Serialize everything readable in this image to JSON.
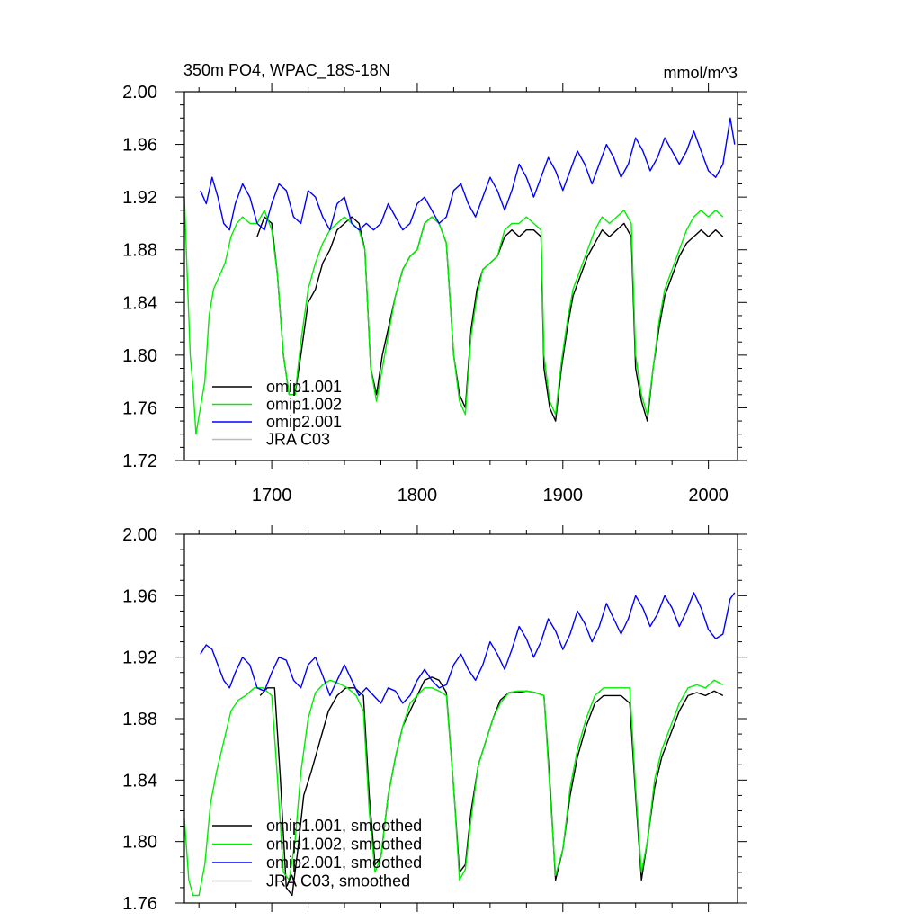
{
  "chart_data": [
    {
      "type": "line",
      "title": "350m PO4, WPAC_18S-18N",
      "units": "mmol/m^3",
      "xlim": [
        1640,
        2020
      ],
      "ylim": [
        1.72,
        2.0
      ],
      "x_ticks": [
        1700,
        1800,
        1900,
        2000
      ],
      "y_ticks": [
        "1.72",
        "1.76",
        "1.80",
        "1.84",
        "1.88",
        "1.92",
        "1.96",
        "2.00"
      ],
      "series": [
        {
          "name": "omip1.001",
          "color": "#000000",
          "x": [
            1690,
            1695,
            1700,
            1704,
            1708,
            1712,
            1716,
            1720,
            1725,
            1730,
            1735,
            1740,
            1745,
            1750,
            1755,
            1760,
            1764,
            1768,
            1772,
            1776,
            1780,
            1785,
            1790,
            1795,
            1800,
            1805,
            1810,
            1815,
            1820,
            1825,
            1829,
            1833,
            1837,
            1841,
            1845,
            1850,
            1855,
            1860,
            1865,
            1870,
            1875,
            1880,
            1885,
            1887,
            1891,
            1895,
            1899,
            1903,
            1907,
            1912,
            1917,
            1922,
            1927,
            1932,
            1937,
            1942,
            1947,
            1950,
            1954,
            1958,
            1962,
            1966,
            1970,
            1975,
            1980,
            1985,
            1990,
            1995,
            2000,
            2005,
            2010
          ],
          "y": [
            1.89,
            1.905,
            1.9,
            1.86,
            1.8,
            1.77,
            1.77,
            1.8,
            1.84,
            1.85,
            1.87,
            1.88,
            1.895,
            1.9,
            1.905,
            1.9,
            1.88,
            1.79,
            1.77,
            1.8,
            1.82,
            1.845,
            1.865,
            1.875,
            1.88,
            1.9,
            1.905,
            1.9,
            1.885,
            1.8,
            1.77,
            1.76,
            1.82,
            1.85,
            1.865,
            1.87,
            1.875,
            1.89,
            1.895,
            1.89,
            1.895,
            1.895,
            1.89,
            1.79,
            1.76,
            1.75,
            1.79,
            1.82,
            1.845,
            1.86,
            1.875,
            1.885,
            1.895,
            1.89,
            1.895,
            1.9,
            1.89,
            1.79,
            1.765,
            1.75,
            1.79,
            1.82,
            1.845,
            1.86,
            1.875,
            1.885,
            1.89,
            1.895,
            1.89,
            1.895,
            1.89
          ]
        },
        {
          "name": "omip1.002",
          "color": "#00ee00",
          "x": [
            1640,
            1642,
            1644,
            1646,
            1648,
            1651,
            1654,
            1657,
            1660,
            1664,
            1668,
            1672,
            1676,
            1680,
            1685,
            1690,
            1695,
            1700,
            1704,
            1708,
            1712,
            1716,
            1720,
            1725,
            1730,
            1735,
            1740,
            1745,
            1750,
            1755,
            1760,
            1764,
            1768,
            1772,
            1776,
            1780,
            1785,
            1790,
            1795,
            1800,
            1805,
            1810,
            1815,
            1820,
            1825,
            1829,
            1833,
            1837,
            1841,
            1845,
            1850,
            1855,
            1860,
            1865,
            1870,
            1875,
            1880,
            1885,
            1887,
            1891,
            1895,
            1899,
            1903,
            1907,
            1912,
            1917,
            1922,
            1927,
            1932,
            1937,
            1942,
            1947,
            1950,
            1954,
            1958,
            1962,
            1966,
            1970,
            1975,
            1980,
            1985,
            1990,
            1995,
            2000,
            2005,
            2010
          ],
          "y": [
            1.92,
            1.86,
            1.8,
            1.775,
            1.74,
            1.76,
            1.78,
            1.83,
            1.85,
            1.86,
            1.87,
            1.89,
            1.9,
            1.905,
            1.9,
            1.9,
            1.91,
            1.895,
            1.86,
            1.8,
            1.77,
            1.77,
            1.81,
            1.85,
            1.87,
            1.885,
            1.895,
            1.9,
            1.905,
            1.9,
            1.895,
            1.88,
            1.79,
            1.765,
            1.79,
            1.815,
            1.845,
            1.865,
            1.875,
            1.88,
            1.9,
            1.905,
            1.9,
            1.885,
            1.8,
            1.765,
            1.755,
            1.815,
            1.845,
            1.865,
            1.87,
            1.875,
            1.895,
            1.9,
            1.9,
            1.905,
            1.9,
            1.895,
            1.8,
            1.765,
            1.755,
            1.795,
            1.825,
            1.85,
            1.865,
            1.88,
            1.895,
            1.905,
            1.9,
            1.905,
            1.91,
            1.9,
            1.8,
            1.77,
            1.755,
            1.79,
            1.825,
            1.85,
            1.865,
            1.88,
            1.895,
            1.905,
            1.91,
            1.905,
            1.91,
            1.905
          ]
        },
        {
          "name": "omip2.001",
          "color": "#0000ff",
          "x": [
            1651,
            1655,
            1659,
            1663,
            1667,
            1671,
            1675,
            1680,
            1685,
            1690,
            1695,
            1700,
            1705,
            1710,
            1715,
            1720,
            1725,
            1730,
            1735,
            1740,
            1745,
            1750,
            1755,
            1760,
            1765,
            1770,
            1775,
            1780,
            1785,
            1790,
            1795,
            1800,
            1805,
            1810,
            1815,
            1820,
            1825,
            1830,
            1835,
            1840,
            1845,
            1850,
            1855,
            1860,
            1865,
            1870,
            1875,
            1880,
            1885,
            1890,
            1895,
            1900,
            1905,
            1910,
            1915,
            1920,
            1925,
            1930,
            1935,
            1940,
            1945,
            1950,
            1955,
            1960,
            1965,
            1970,
            1975,
            1980,
            1985,
            1990,
            1995,
            2000,
            2005,
            2010,
            2015,
            2018
          ],
          "y": [
            1.925,
            1.915,
            1.935,
            1.92,
            1.9,
            1.895,
            1.915,
            1.93,
            1.92,
            1.9,
            1.895,
            1.915,
            1.93,
            1.925,
            1.905,
            1.9,
            1.925,
            1.92,
            1.905,
            1.895,
            1.915,
            1.92,
            1.9,
            1.895,
            1.9,
            1.895,
            1.9,
            1.915,
            1.905,
            1.895,
            1.9,
            1.915,
            1.92,
            1.91,
            1.9,
            1.905,
            1.925,
            1.93,
            1.915,
            1.905,
            1.92,
            1.935,
            1.925,
            1.91,
            1.925,
            1.945,
            1.935,
            1.92,
            1.935,
            1.95,
            1.94,
            1.925,
            1.94,
            1.955,
            1.945,
            1.93,
            1.945,
            1.96,
            1.95,
            1.935,
            1.945,
            1.965,
            1.955,
            1.94,
            1.95,
            1.965,
            1.955,
            1.945,
            1.955,
            1.97,
            1.955,
            1.94,
            1.935,
            1.945,
            1.98,
            1.96
          ]
        },
        {
          "name": "JRA C03",
          "color": "#bbbbbb",
          "x": [],
          "y": []
        }
      ]
    },
    {
      "type": "line",
      "title": "",
      "xlim": [
        1640,
        2020
      ],
      "ylim": [
        1.76,
        2.0
      ],
      "y_ticks": [
        "1.76",
        "1.80",
        "1.84",
        "1.88",
        "1.92",
        "1.96",
        "2.00"
      ],
      "series": [
        {
          "name": "omip1.001, smoothed",
          "color": "#000000",
          "x": [
            1692,
            1697,
            1702,
            1706,
            1710,
            1714,
            1718,
            1722,
            1727,
            1733,
            1739,
            1745,
            1751,
            1757,
            1763,
            1767,
            1771,
            1775,
            1780,
            1785,
            1790,
            1795,
            1800,
            1805,
            1810,
            1815,
            1820,
            1825,
            1829,
            1833,
            1837,
            1842,
            1847,
            1852,
            1857,
            1863,
            1869,
            1875,
            1881,
            1887,
            1891,
            1895,
            1900,
            1905,
            1910,
            1916,
            1922,
            1928,
            1934,
            1940,
            1946,
            1950,
            1954,
            1958,
            1963,
            1968,
            1974,
            1980,
            1986,
            1992,
            1998,
            2004,
            2010
          ],
          "y": [
            1.895,
            1.9,
            1.9,
            1.84,
            1.77,
            1.765,
            1.795,
            1.83,
            1.845,
            1.865,
            1.885,
            1.895,
            1.9,
            1.9,
            1.895,
            1.83,
            1.785,
            1.79,
            1.83,
            1.855,
            1.875,
            1.885,
            1.895,
            1.905,
            1.907,
            1.905,
            1.897,
            1.835,
            1.78,
            1.785,
            1.82,
            1.85,
            1.865,
            1.88,
            1.892,
            1.897,
            1.897,
            1.898,
            1.897,
            1.895,
            1.84,
            1.775,
            1.795,
            1.83,
            1.855,
            1.875,
            1.89,
            1.895,
            1.895,
            1.895,
            1.89,
            1.83,
            1.775,
            1.8,
            1.835,
            1.855,
            1.87,
            1.885,
            1.895,
            1.897,
            1.895,
            1.898,
            1.895
          ]
        },
        {
          "name": "omip1.002, smoothed",
          "color": "#00ee00",
          "x": [
            1640,
            1643,
            1646,
            1650,
            1654,
            1658,
            1662,
            1667,
            1672,
            1677,
            1682,
            1688,
            1694,
            1700,
            1704,
            1708,
            1712,
            1716,
            1720,
            1725,
            1730,
            1735,
            1740,
            1746,
            1752,
            1758,
            1763,
            1767,
            1771,
            1775,
            1780,
            1785,
            1790,
            1795,
            1800,
            1805,
            1810,
            1815,
            1820,
            1825,
            1829,
            1833,
            1837,
            1842,
            1847,
            1852,
            1857,
            1863,
            1869,
            1875,
            1881,
            1887,
            1891,
            1895,
            1900,
            1905,
            1910,
            1916,
            1922,
            1928,
            1934,
            1940,
            1946,
            1950,
            1954,
            1958,
            1963,
            1968,
            1974,
            1980,
            1986,
            1992,
            1998,
            2004,
            2010
          ],
          "y": [
            1.815,
            1.775,
            1.765,
            1.765,
            1.785,
            1.825,
            1.845,
            1.865,
            1.885,
            1.892,
            1.895,
            1.9,
            1.9,
            1.895,
            1.84,
            1.78,
            1.775,
            1.8,
            1.845,
            1.88,
            1.897,
            1.902,
            1.905,
            1.903,
            1.9,
            1.895,
            1.885,
            1.82,
            1.78,
            1.79,
            1.83,
            1.855,
            1.875,
            1.89,
            1.895,
            1.9,
            1.9,
            1.898,
            1.895,
            1.835,
            1.775,
            1.782,
            1.815,
            1.85,
            1.865,
            1.88,
            1.89,
            1.897,
            1.898,
            1.898,
            1.897,
            1.895,
            1.835,
            1.778,
            1.795,
            1.835,
            1.86,
            1.88,
            1.895,
            1.9,
            1.9,
            1.9,
            1.9,
            1.835,
            1.78,
            1.8,
            1.84,
            1.86,
            1.875,
            1.89,
            1.9,
            1.902,
            1.9,
            1.905,
            1.902
          ]
        },
        {
          "name": "omip2.001, smoothed",
          "color": "#0000ff",
          "x": [
            1651,
            1655,
            1659,
            1663,
            1667,
            1671,
            1675,
            1680,
            1685,
            1690,
            1695,
            1700,
            1705,
            1710,
            1715,
            1720,
            1725,
            1730,
            1735,
            1740,
            1745,
            1750,
            1755,
            1760,
            1765,
            1770,
            1775,
            1780,
            1785,
            1790,
            1795,
            1800,
            1805,
            1810,
            1815,
            1820,
            1825,
            1830,
            1835,
            1840,
            1845,
            1850,
            1855,
            1860,
            1865,
            1870,
            1875,
            1880,
            1885,
            1890,
            1895,
            1900,
            1905,
            1910,
            1915,
            1920,
            1925,
            1930,
            1935,
            1940,
            1945,
            1950,
            1955,
            1960,
            1965,
            1970,
            1975,
            1980,
            1985,
            1990,
            1995,
            2000,
            2005,
            2010,
            2015,
            2018
          ],
          "y": [
            1.922,
            1.928,
            1.925,
            1.915,
            1.905,
            1.9,
            1.91,
            1.92,
            1.915,
            1.9,
            1.898,
            1.91,
            1.92,
            1.918,
            1.905,
            1.9,
            1.915,
            1.92,
            1.908,
            1.895,
            1.905,
            1.915,
            1.905,
            1.895,
            1.9,
            1.895,
            1.89,
            1.9,
            1.898,
            1.89,
            1.895,
            1.905,
            1.912,
            1.905,
            1.9,
            1.902,
            1.915,
            1.922,
            1.912,
            1.905,
            1.915,
            1.93,
            1.922,
            1.912,
            1.925,
            1.94,
            1.932,
            1.92,
            1.93,
            1.945,
            1.937,
            1.925,
            1.935,
            1.95,
            1.942,
            1.93,
            1.94,
            1.955,
            1.945,
            1.935,
            1.945,
            1.96,
            1.952,
            1.94,
            1.948,
            1.96,
            1.952,
            1.94,
            1.95,
            1.962,
            1.952,
            1.938,
            1.932,
            1.935,
            1.958,
            1.962
          ]
        },
        {
          "name": "JRA C03, smoothed",
          "color": "#bbbbbb",
          "x": [],
          "y": []
        }
      ]
    }
  ]
}
